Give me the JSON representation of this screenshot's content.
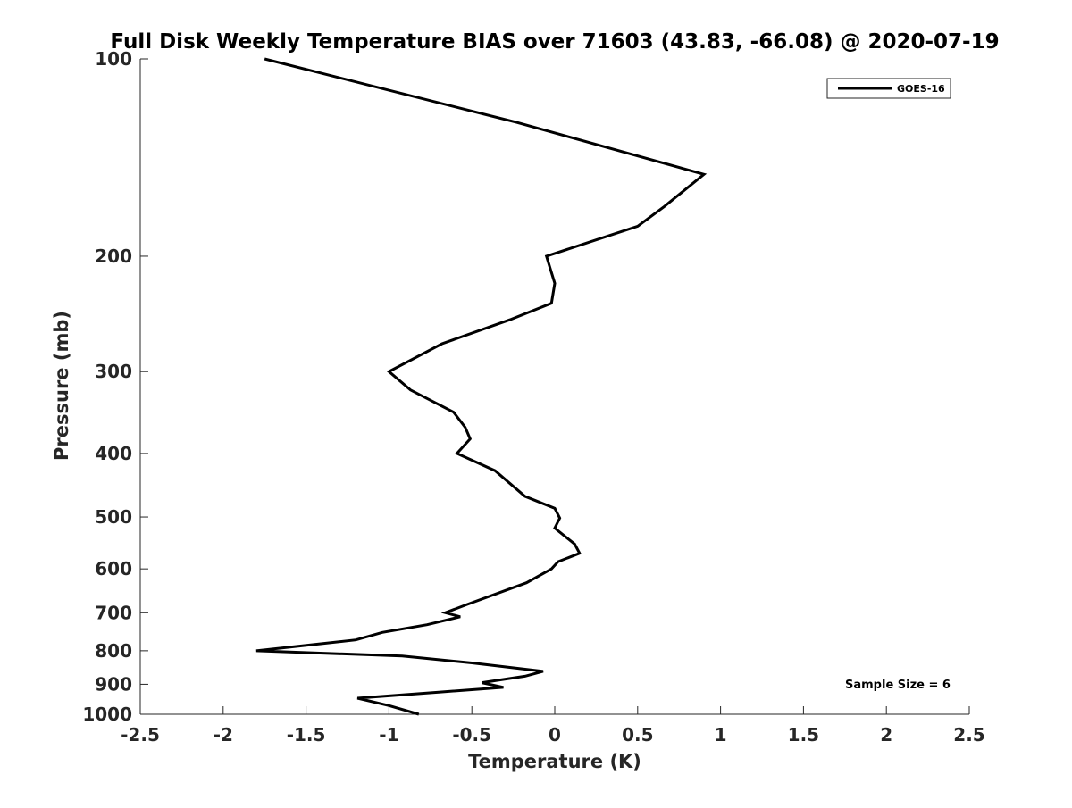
{
  "chart_data": {
    "type": "line",
    "title": "Full Disk Weekly Temperature BIAS over 71603 (43.83, -66.08) @ 2020-07-19",
    "xlabel": "Temperature (K)",
    "ylabel": "Pressure (mb)",
    "xlim": [
      -2.5,
      2.5
    ],
    "ylim": [
      100,
      1000
    ],
    "y_scale": "log",
    "y_reversed": true,
    "x_ticks": [
      "-2.5",
      "-2",
      "-1.5",
      "-1",
      "-0.5",
      "0",
      "0.5",
      "1",
      "1.5",
      "2",
      "2.5"
    ],
    "y_ticks": [
      "100",
      "200",
      "300",
      "400",
      "500",
      "600",
      "700",
      "800",
      "900",
      "1000"
    ],
    "grid": false,
    "legend_position": "top-right",
    "annotation": "Sample Size = 6",
    "series": [
      {
        "name": "GOES-16",
        "color": "#000000",
        "points": [
          {
            "x": -1.75,
            "y": 100
          },
          {
            "x": -0.23,
            "y": 125
          },
          {
            "x": 0.9,
            "y": 150
          },
          {
            "x": 0.66,
            "y": 168
          },
          {
            "x": 0.5,
            "y": 180
          },
          {
            "x": -0.05,
            "y": 200
          },
          {
            "x": 0.0,
            "y": 220
          },
          {
            "x": -0.02,
            "y": 236
          },
          {
            "x": -0.27,
            "y": 250
          },
          {
            "x": -0.68,
            "y": 272
          },
          {
            "x": -1.0,
            "y": 300
          },
          {
            "x": -0.87,
            "y": 320
          },
          {
            "x": -0.61,
            "y": 346
          },
          {
            "x": -0.54,
            "y": 365
          },
          {
            "x": -0.51,
            "y": 380
          },
          {
            "x": -0.59,
            "y": 400
          },
          {
            "x": -0.36,
            "y": 425
          },
          {
            "x": -0.18,
            "y": 465
          },
          {
            "x": 0.0,
            "y": 485
          },
          {
            "x": 0.03,
            "y": 502
          },
          {
            "x": 0.0,
            "y": 520
          },
          {
            "x": 0.12,
            "y": 550
          },
          {
            "x": 0.15,
            "y": 568
          },
          {
            "x": 0.02,
            "y": 585
          },
          {
            "x": -0.02,
            "y": 600
          },
          {
            "x": -0.17,
            "y": 630
          },
          {
            "x": -0.53,
            "y": 680
          },
          {
            "x": -0.66,
            "y": 700
          },
          {
            "x": -0.57,
            "y": 710
          },
          {
            "x": -0.77,
            "y": 730
          },
          {
            "x": -1.04,
            "y": 750
          },
          {
            "x": -1.2,
            "y": 770
          },
          {
            "x": -1.8,
            "y": 800
          },
          {
            "x": -0.92,
            "y": 815
          },
          {
            "x": -0.5,
            "y": 835
          },
          {
            "x": -0.07,
            "y": 860
          },
          {
            "x": -0.18,
            "y": 875
          },
          {
            "x": -0.44,
            "y": 895
          },
          {
            "x": -0.31,
            "y": 910
          },
          {
            "x": -0.69,
            "y": 925
          },
          {
            "x": -1.19,
            "y": 945
          },
          {
            "x": -1.0,
            "y": 970
          },
          {
            "x": -0.82,
            "y": 1000
          }
        ]
      }
    ]
  }
}
